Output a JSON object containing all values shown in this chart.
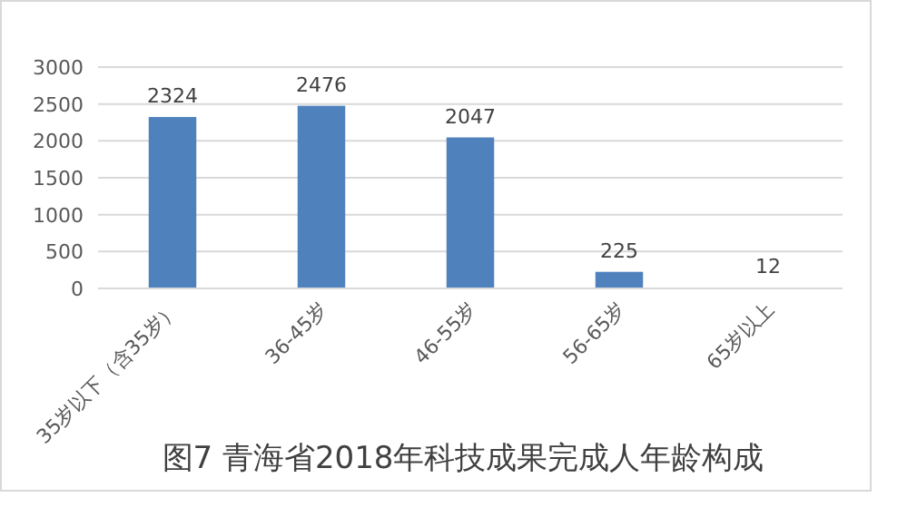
{
  "chart_data": {
    "type": "bar",
    "title": "图7 青海省2018年科技成果完成人年龄构成",
    "categories": [
      "35岁以下（含35岁）",
      "36-45岁",
      "46-55岁",
      "56-65岁",
      "65岁以上"
    ],
    "values": [
      2324,
      2476,
      2047,
      225,
      12
    ],
    "color": "#4f81bd",
    "ylim": [
      0,
      3000
    ],
    "yticks": [
      0,
      500,
      1000,
      1500,
      2000,
      2500,
      3000
    ],
    "grid": "y",
    "data_labels": true
  }
}
